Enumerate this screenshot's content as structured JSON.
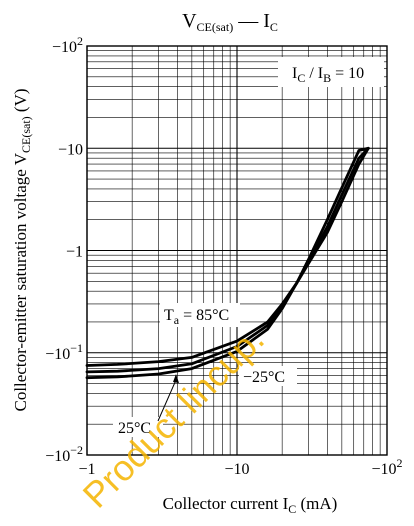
{
  "chart_data": {
    "type": "line",
    "title": {
      "main": "V",
      "main_sub": "CE(sat)",
      "sep": " — ",
      "second": "I",
      "second_sub": "C"
    },
    "condition": {
      "a": "I",
      "a_sub": "C",
      "slash": " / ",
      "b": "I",
      "b_sub": "B",
      "eq": " = 10"
    },
    "xlabel": {
      "text": "Collector current  I",
      "sub": "C",
      "unit": "  (mA)"
    },
    "ylabel": {
      "text": "Collector-emitter saturation voltage  V",
      "sub": "CE(sat)",
      "unit": "  (V)"
    },
    "x_scale": "log",
    "y_scale": "log",
    "x_range_abs": [
      1,
      100
    ],
    "y_range_abs": [
      0.01,
      100
    ],
    "x_ticks": [
      {
        "value": 1,
        "label": "−1"
      },
      {
        "value": 10,
        "label": "−10"
      },
      {
        "value": 100,
        "label": "−10",
        "sup": "2"
      }
    ],
    "y_ticks": [
      {
        "value": 0.01,
        "label": "−10",
        "sup": "−2"
      },
      {
        "value": 0.1,
        "label": "−10",
        "sup": "−1"
      },
      {
        "value": 1,
        "label": "−1"
      },
      {
        "value": 10,
        "label": "−10"
      },
      {
        "value": 100,
        "label": "−10",
        "sup": "2"
      }
    ],
    "grid": true,
    "series": [
      {
        "name": "Ta = 85°C",
        "x": [
          1,
          1.6,
          3,
          5,
          10,
          16,
          20,
          25,
          30,
          40,
          50,
          65,
          75
        ],
        "y": [
          0.075,
          0.077,
          0.082,
          0.09,
          0.13,
          0.2,
          0.3,
          0.48,
          0.75,
          1.5,
          3,
          7,
          10
        ]
      },
      {
        "name": "25°C",
        "x": [
          1,
          1.6,
          3,
          5,
          10,
          16,
          20,
          25,
          30,
          40,
          50,
          65,
          75
        ],
        "y": [
          0.065,
          0.066,
          0.07,
          0.078,
          0.115,
          0.185,
          0.29,
          0.48,
          0.78,
          1.7,
          3.5,
          8,
          10
        ]
      },
      {
        "name": "−25°C",
        "x": [
          1,
          1.6,
          3,
          5,
          10,
          16,
          20,
          25,
          30,
          40,
          50,
          65,
          75
        ],
        "y": [
          0.057,
          0.058,
          0.062,
          0.07,
          0.103,
          0.17,
          0.27,
          0.48,
          0.82,
          2.0,
          4.1,
          9.5,
          10
        ]
      }
    ],
    "annotations": [
      {
        "target": "Ta = 85°C",
        "text": "T",
        "sub": "a",
        "rest": " = 85°C"
      },
      {
        "target": "−25°C",
        "text": "−25°C"
      },
      {
        "target": "25°C",
        "text": "25°C"
      }
    ]
  },
  "watermark": "Product lincup."
}
